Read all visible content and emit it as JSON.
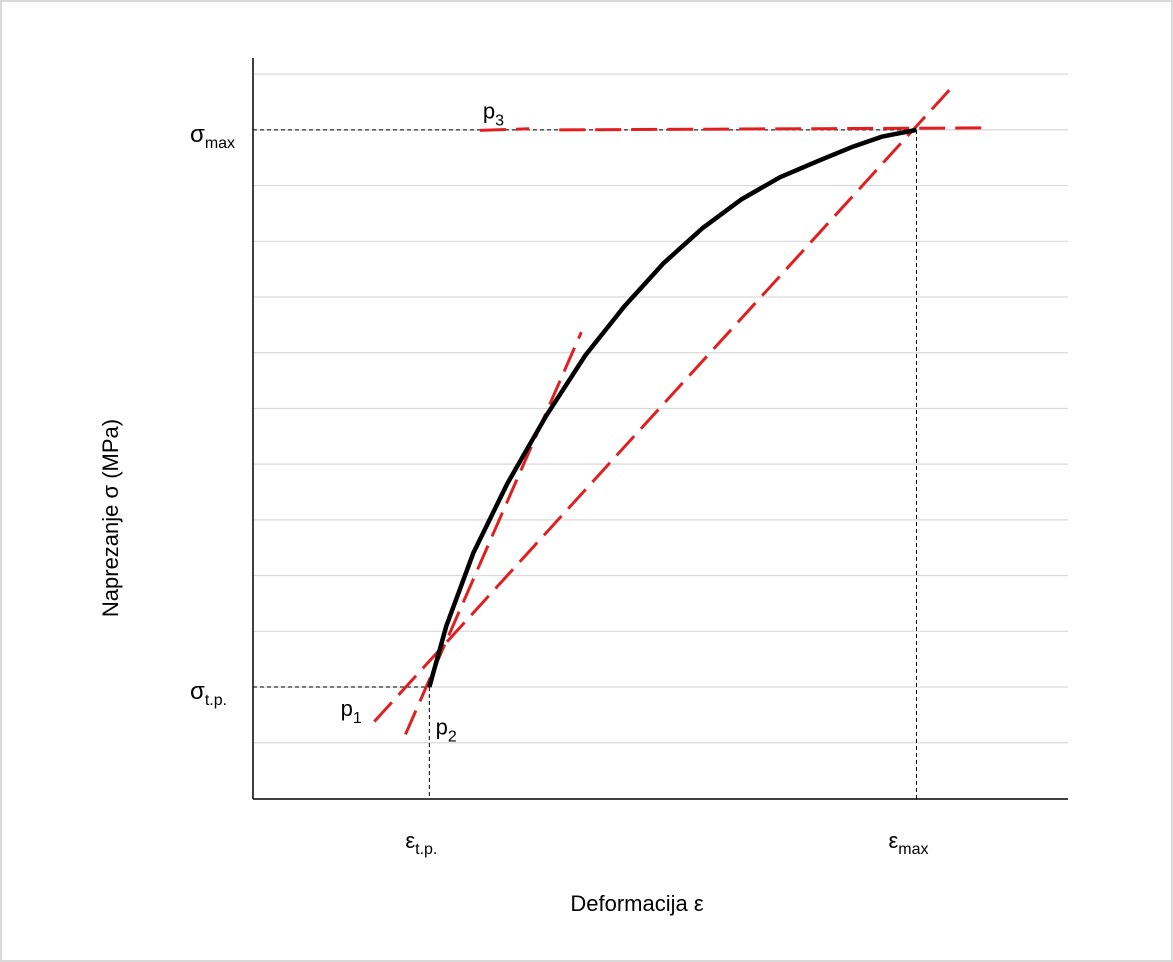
{
  "chart_data": {
    "type": "line",
    "title": "",
    "xlabel": "Deformacija ε",
    "ylabel": "Naprezanje σ (MPa)",
    "x_ticks": [
      {
        "base": "ε",
        "sub": "t.p.",
        "value": 0.0
      },
      {
        "base": "ε",
        "sub": "max",
        "value": 1.0
      }
    ],
    "y_ticks": [
      {
        "base": "σ",
        "sub": "t.p.",
        "value": 0.0
      },
      {
        "base": "σ",
        "sub": "max",
        "value": 1.0
      }
    ],
    "xlim": [
      -0.362,
      1.311
    ],
    "ylim": [
      -0.201,
      1.129
    ],
    "grid_y": [
      -0.201,
      -0.1,
      0.0,
      0.1,
      0.2,
      0.3,
      0.4,
      0.5,
      0.6,
      0.7,
      0.8,
      0.9,
      1.0,
      1.1
    ],
    "series": [
      {
        "kind": "curve",
        "color": "#000000",
        "x": [
          0.0,
          0.035,
          0.09,
          0.16,
          0.24,
          0.32,
          0.4,
          0.48,
          0.56,
          0.64,
          0.72,
          0.8,
          0.87,
          0.93,
          1.0
        ],
        "y": [
          0.0,
          0.11,
          0.24,
          0.365,
          0.487,
          0.595,
          0.683,
          0.76,
          0.823,
          0.875,
          0.915,
          0.945,
          0.97,
          0.988,
          1.0
        ]
      }
    ],
    "tangent_lines": [
      {
        "label_base": "p",
        "label_sub": "1",
        "color": "#e02020",
        "x": [
          -0.113,
          1.068
        ],
        "y": [
          -0.062,
          1.072
        ],
        "label_at": [
          -0.182,
          -0.052
        ]
      },
      {
        "label_base": "p",
        "label_sub": "2",
        "color": "#e02020",
        "x": [
          -0.049,
          0.312
        ],
        "y": [
          -0.085,
          0.637
        ],
        "label_at": [
          0.013,
          -0.085
        ]
      },
      {
        "label_base": "p",
        "label_sub": "3",
        "color": "#e02020",
        "x": [
          0.104,
          0.205
        ],
        "y": [
          0.999,
          1.002
        ],
        "label_at": [
          0.11,
          1.02
        ]
      }
    ],
    "guides": [
      {
        "point": [
          0.0,
          0.0
        ]
      },
      {
        "point": [
          1.0,
          1.0
        ]
      }
    ]
  }
}
